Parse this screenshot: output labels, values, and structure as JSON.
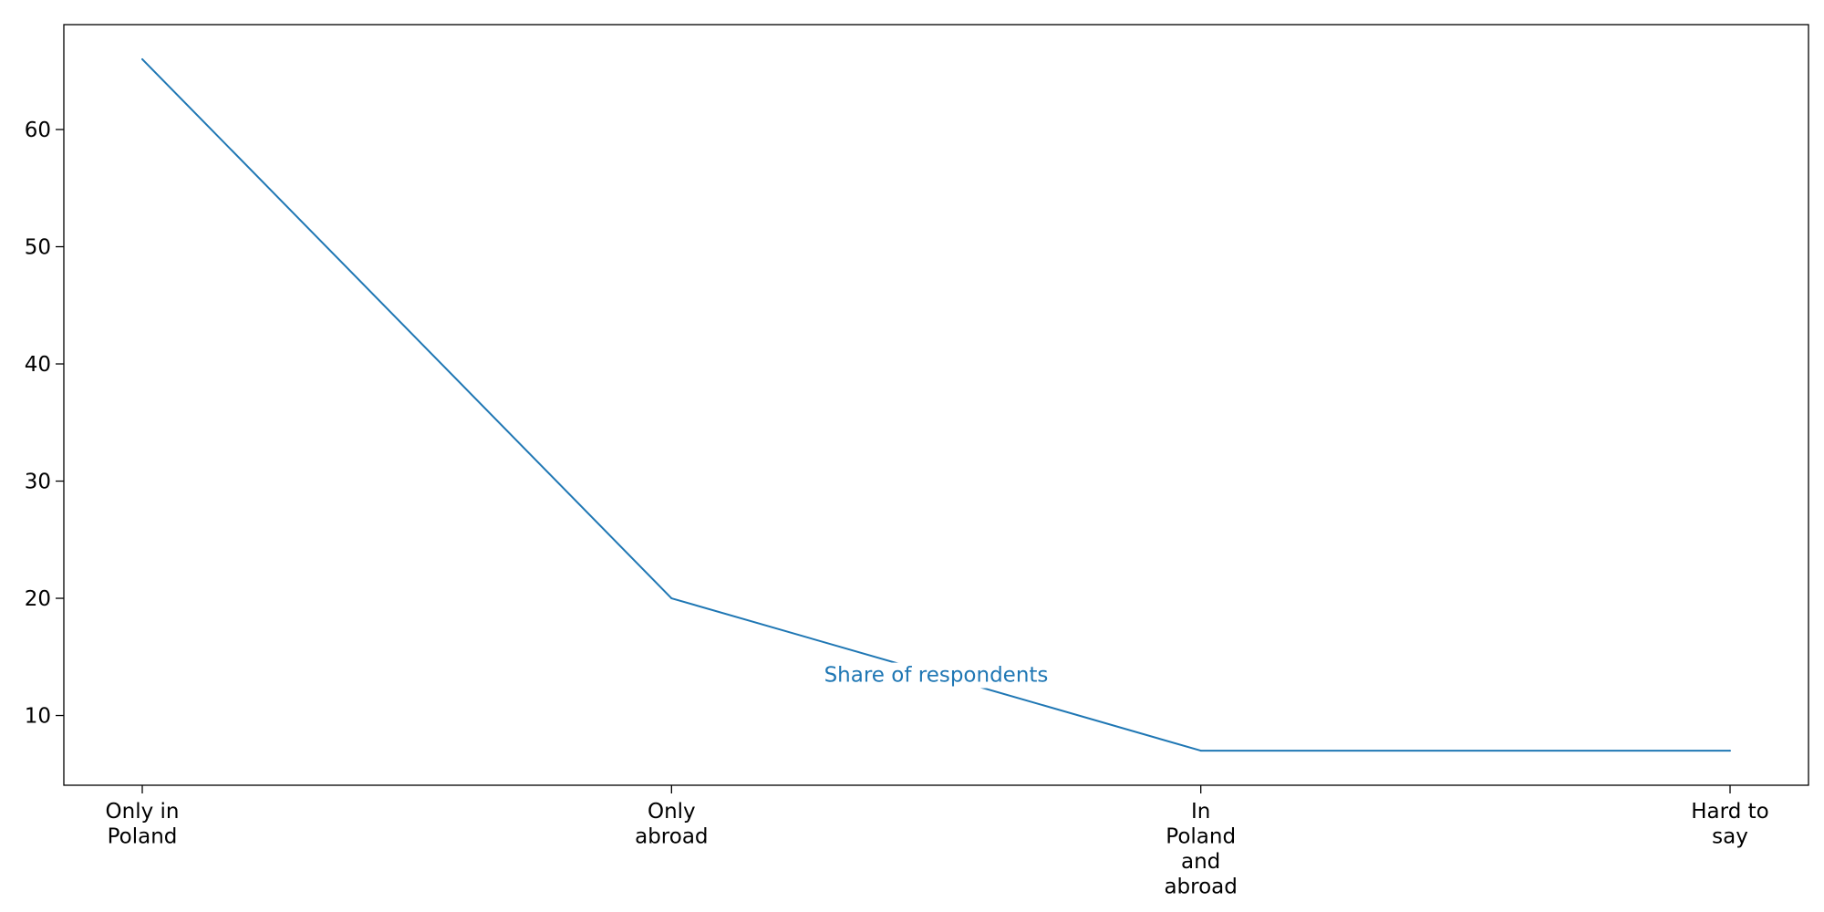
{
  "chart_data": {
    "type": "line",
    "title": "",
    "xlabel": "",
    "ylabel": "",
    "categories": [
      "Only in\nPoland",
      "Only\nabroad",
      "In\nPoland\nand\nabroad",
      "Hard to\nsay"
    ],
    "series": [
      {
        "name": "Share of respondents",
        "values": [
          66,
          20,
          7,
          7
        ],
        "color": "#1f77b4"
      }
    ],
    "yticks": [
      10,
      20,
      30,
      40,
      50,
      60
    ],
    "ylim": [
      4.05,
      68.95
    ],
    "grid": false,
    "legend": "none"
  }
}
